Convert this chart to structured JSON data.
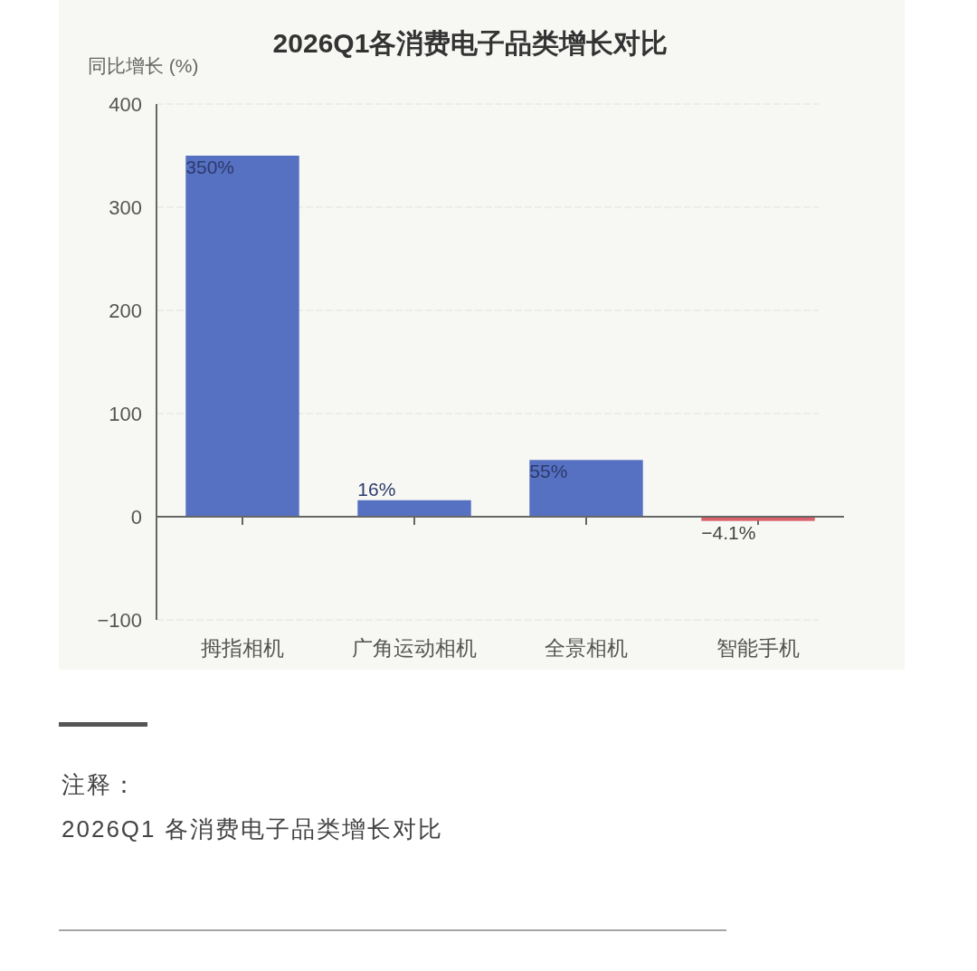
{
  "chart_data": {
    "type": "bar",
    "title": "2026Q1各消费电子品类增长对比",
    "ylabel": "同比增长 (%)",
    "categories": [
      "拇指相机",
      "广角运动相机",
      "全景相机",
      "智能手机"
    ],
    "values": [
      350,
      16,
      55,
      -4.1
    ],
    "colors": [
      "#5670c2",
      "#5670c2",
      "#5670c2",
      "#d9626b"
    ],
    "value_labels": [
      "350%",
      "16%",
      "55%",
      "−4.1%"
    ],
    "ylim": [
      -100,
      400
    ],
    "yticks": [
      {
        "value": -100,
        "label": "−100"
      },
      0,
      100,
      200,
      300,
      400
    ],
    "grid": "y",
    "annotations": [
      "注释：",
      "2026Q1 各消费电子品类增长对比"
    ]
  }
}
